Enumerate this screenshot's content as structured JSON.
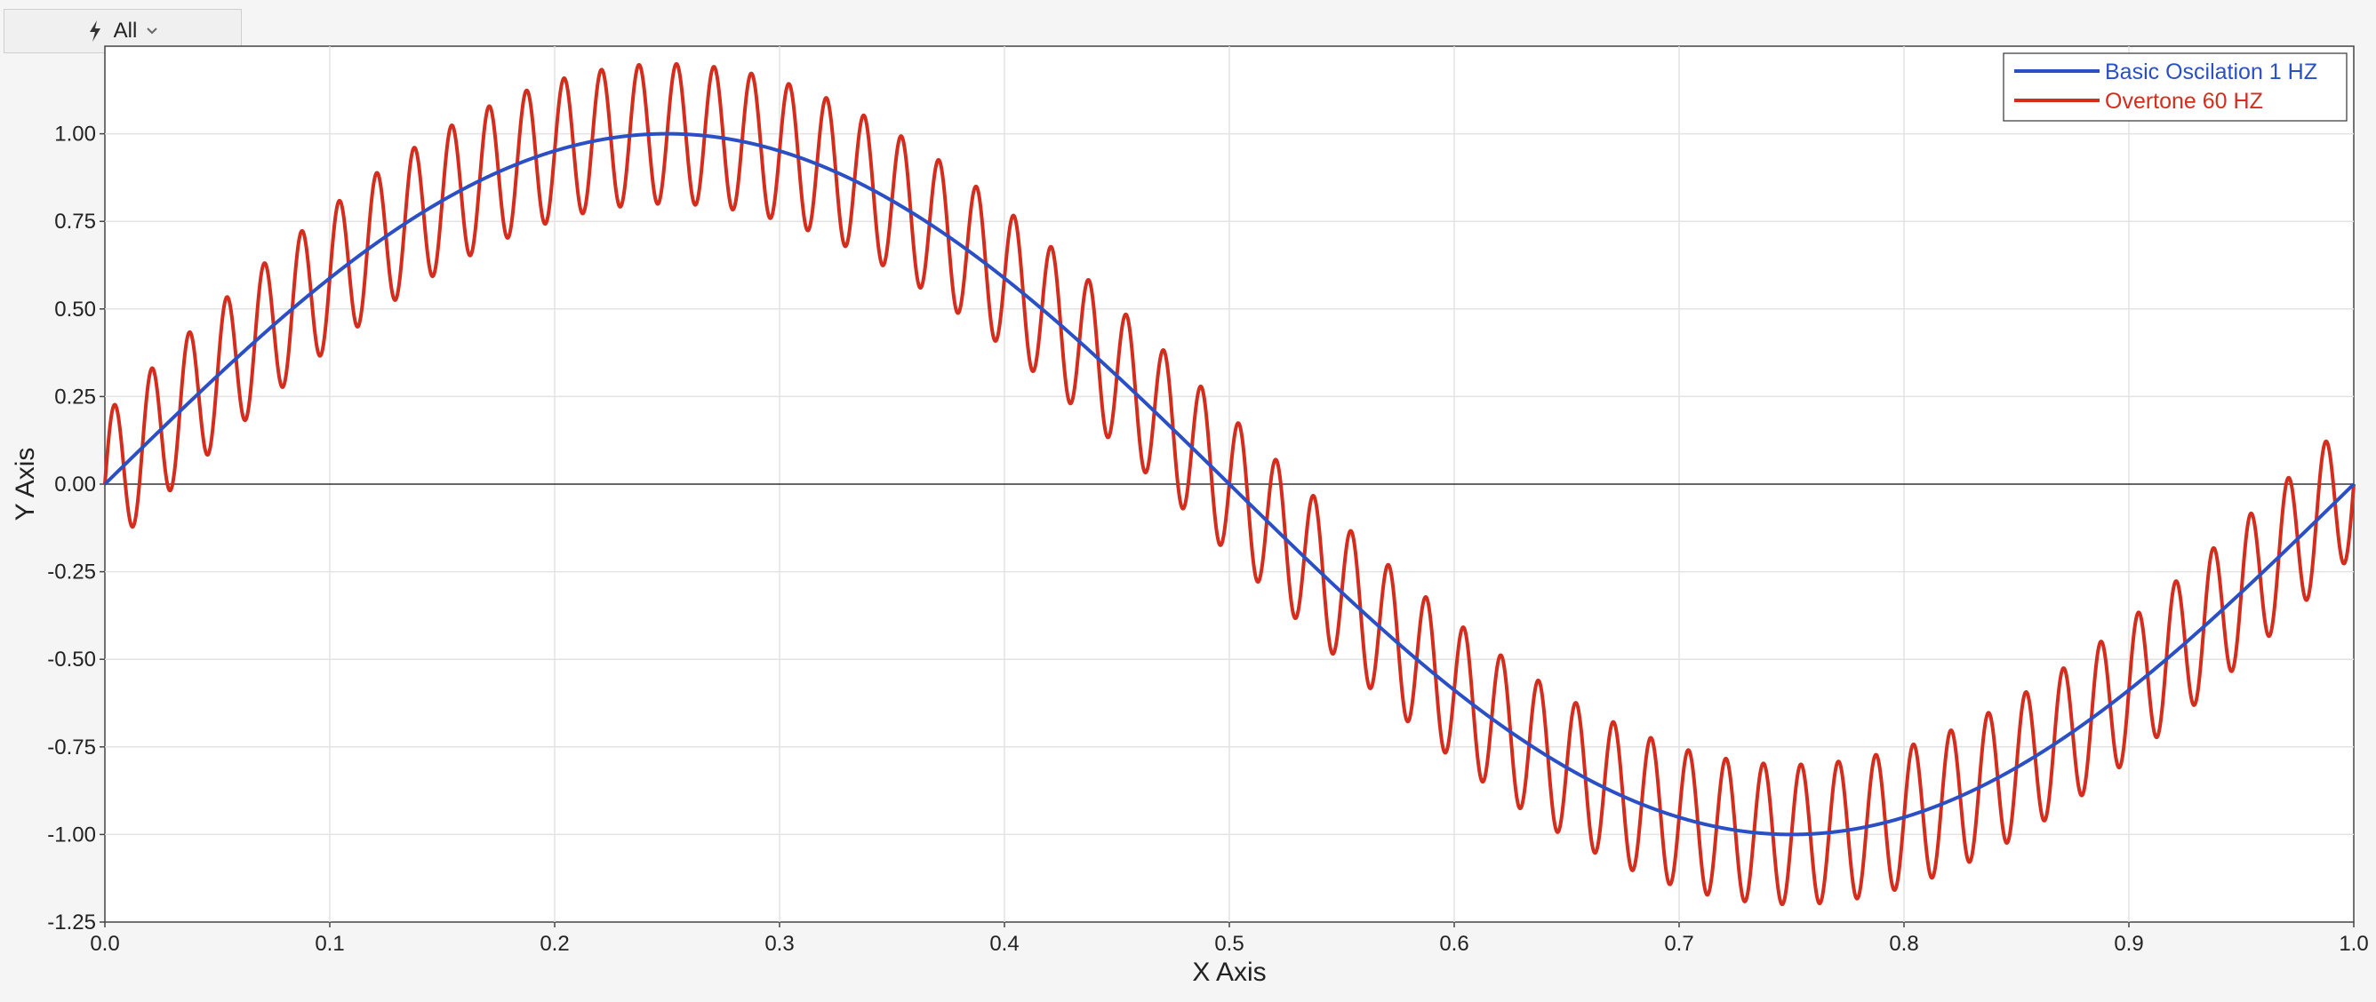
{
  "toolbar": {
    "filter_label": "All",
    "filter_icon": "lightning-icon",
    "dropdown_icon": "chevron-down-icon"
  },
  "chart_data": {
    "type": "line",
    "xlabel": "X Axis",
    "ylabel": "Y Axis",
    "xlim": [
      0.0,
      1.0
    ],
    "ylim": [
      -1.25,
      1.25
    ],
    "x_ticks": [
      "0.0",
      "0.1",
      "0.2",
      "0.3",
      "0.4",
      "0.5",
      "0.6",
      "0.7",
      "0.8",
      "0.9",
      "1.0"
    ],
    "y_ticks": [
      "1.00",
      "0.75",
      "0.50",
      "0.25",
      "0.00",
      "-0.25",
      "-0.50",
      "-0.75",
      "-1.00",
      "-1.25"
    ],
    "grid": true,
    "legend_position": "top-right",
    "series": [
      {
        "name": "Basic Oscilation 1 HZ",
        "color": "#2b4fc4",
        "function": "sin(2*pi*1*x)",
        "x": [
          0.0,
          0.05,
          0.1,
          0.15,
          0.2,
          0.25,
          0.3,
          0.35,
          0.4,
          0.45,
          0.5,
          0.55,
          0.6,
          0.65,
          0.7,
          0.75,
          0.8,
          0.85,
          0.9,
          0.95,
          1.0
        ],
        "values": [
          0.0,
          0.31,
          0.59,
          0.81,
          0.95,
          1.0,
          0.95,
          0.81,
          0.59,
          0.31,
          0.0,
          -0.31,
          -0.59,
          -0.81,
          -0.95,
          -1.0,
          -0.95,
          -0.81,
          -0.59,
          -0.31,
          0.0
        ]
      },
      {
        "name": "Overtone 60 HZ",
        "color": "#d42d1e",
        "function": "sin(2*pi*1*x) + 0.2*sin(2*pi*60*x)",
        "x": [
          0.0,
          0.05,
          0.1,
          0.15,
          0.2,
          0.25,
          0.3,
          0.35,
          0.4,
          0.45,
          0.5,
          0.55,
          0.6,
          0.65,
          0.7,
          0.75,
          0.8,
          0.85,
          0.9,
          0.95,
          1.0
        ],
        "values": [
          0.0,
          0.31,
          0.59,
          0.81,
          0.95,
          1.0,
          0.95,
          0.81,
          0.59,
          0.31,
          0.0,
          -0.31,
          -0.59,
          -0.81,
          -0.95,
          -1.0,
          -0.95,
          -0.81,
          -0.59,
          -0.31,
          0.0
        ],
        "overtone_amplitude": 0.2,
        "overtone_frequency_hz": 60
      }
    ]
  }
}
